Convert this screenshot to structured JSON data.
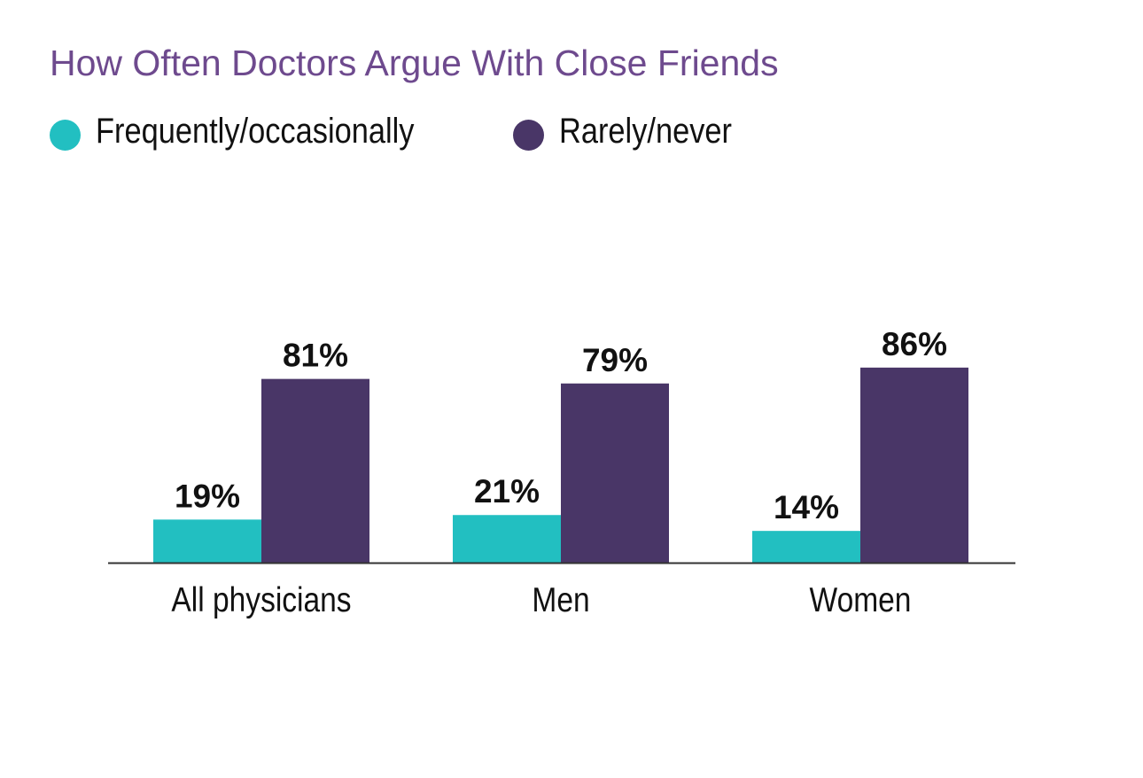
{
  "chart_data": {
    "type": "bar",
    "title": "How Often Doctors Argue With Close Friends",
    "categories": [
      "All physicians",
      "Men",
      "Women"
    ],
    "series": [
      {
        "name": "Frequently/occasionally",
        "color": "#22bfc1",
        "values": [
          19,
          21,
          14
        ],
        "value_labels": [
          "19%",
          "21%",
          "14%"
        ]
      },
      {
        "name": "Rarely/never",
        "color": "#493667",
        "values": [
          81,
          79,
          86
        ],
        "value_labels": [
          "81%",
          "79%",
          "86%"
        ]
      }
    ],
    "xlabel": "",
    "ylabel": "",
    "ylim": [
      0,
      100
    ],
    "grid": false,
    "legend_position": "top-left"
  }
}
